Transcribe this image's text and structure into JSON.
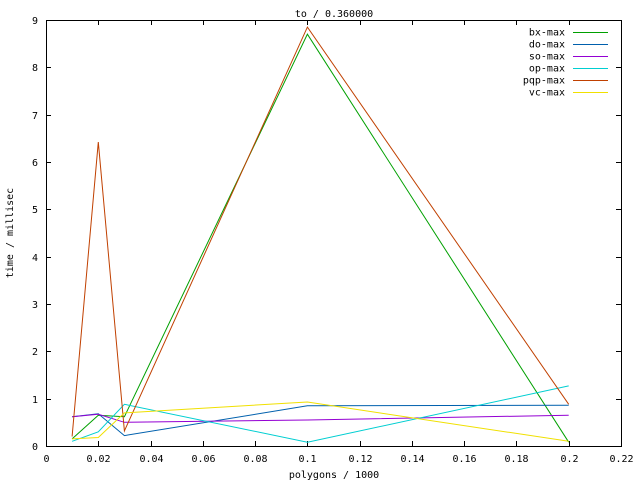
{
  "chart_data": {
    "type": "line",
    "title": "to / 0.360000",
    "xlabel": "polygons / 1000",
    "ylabel": "time / millisec",
    "xlim": [
      0,
      0.22
    ],
    "ylim": [
      0,
      9
    ],
    "x_ticks": [
      "0",
      "0.02",
      "0.04",
      "0.06",
      "0.08",
      "0.1",
      "0.12",
      "0.14",
      "0.16",
      "0.18",
      "0.2",
      "0.22"
    ],
    "y_ticks": [
      "0",
      "1",
      "2",
      "3",
      "4",
      "5",
      "6",
      "7",
      "8",
      "9"
    ],
    "grid": false,
    "legend_position": "top-right",
    "x": [
      0.01,
      0.02,
      0.03,
      0.1,
      0.2
    ],
    "series": [
      {
        "name": "bx-max",
        "color": "#00a000",
        "values": [
          0.15,
          0.65,
          0.62,
          8.7,
          0.08
        ]
      },
      {
        "name": "do-max",
        "color": "#0060ad",
        "values": [
          0.62,
          0.68,
          0.22,
          0.85,
          0.86
        ]
      },
      {
        "name": "so-max",
        "color": "#9400d3",
        "values": [
          0.62,
          0.67,
          0.5,
          0.55,
          0.65
        ]
      },
      {
        "name": "op-max",
        "color": "#00ced1",
        "values": [
          0.1,
          0.3,
          0.88,
          0.08,
          1.27
        ]
      },
      {
        "name": "pqp-max",
        "color": "#c04000",
        "values": [
          0.2,
          6.42,
          0.32,
          8.85,
          0.88
        ]
      },
      {
        "name": "vc-max",
        "color": "#f0e000",
        "values": [
          0.15,
          0.18,
          0.7,
          0.93,
          0.1
        ]
      }
    ]
  }
}
